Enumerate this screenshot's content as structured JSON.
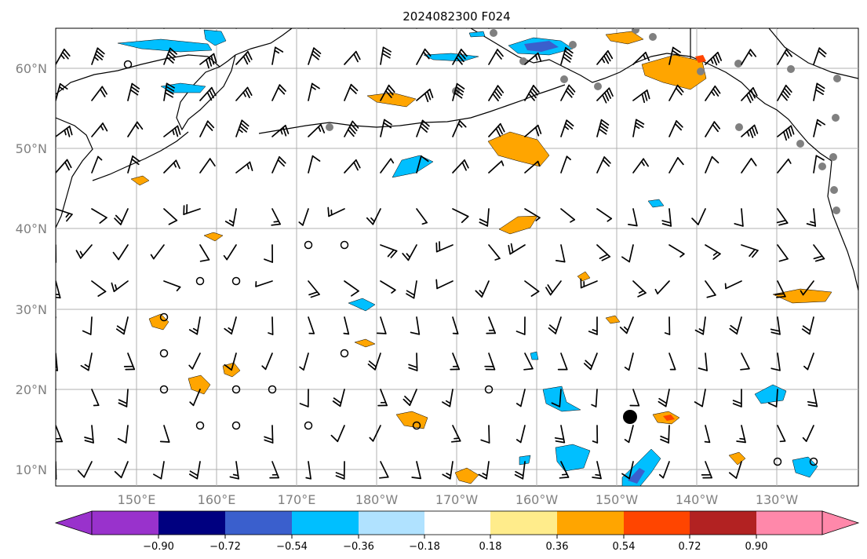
{
  "title": "2024082300 F024",
  "latitude_labels": [
    "60°N",
    "50°N",
    "40°N",
    "30°N",
    "20°N",
    "10°N"
  ],
  "longitude_labels": [
    "150°E",
    "160°E",
    "170°E",
    "180°W",
    "170°W",
    "160°W",
    "150°W",
    "140°W",
    "130°W"
  ],
  "grid": true,
  "colorbar": {
    "ticks": [
      "−0.90",
      "−0.72",
      "−0.54",
      "−0.36",
      "−0.18",
      "0.18",
      "0.36",
      "0.54",
      "0.72",
      "0.90"
    ],
    "colors": [
      "#9932cc",
      "#000080",
      "#3a5fcd",
      "#00bfff",
      "#b0e2ff",
      "#ffffff",
      "#ffec8b",
      "#ffa500",
      "#ff4500",
      "#b22222",
      "#ff88aa"
    ],
    "extend": "both"
  },
  "overlay_colors": {
    "positive": "#ffa500",
    "strong_positive": "#ff4500",
    "negative": "#00bfff",
    "strong_negative": "#3a5fcd",
    "station_markers": "#808080",
    "wind_barbs": "#000000"
  }
}
